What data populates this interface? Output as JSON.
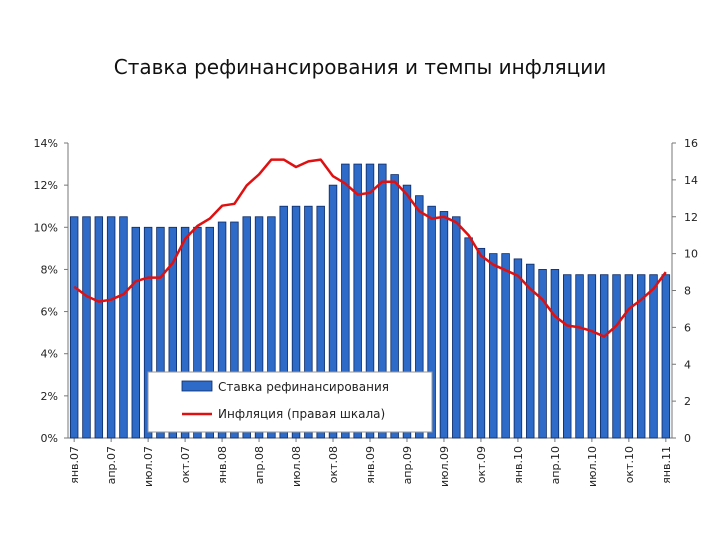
{
  "title": "Ставка рефинансирования и темпы инфляции",
  "colors": {
    "bar": "#2e6bc8",
    "bar_edge": "#0b2a66",
    "line": "#e01010"
  },
  "chart_data": {
    "type": "bar",
    "left_axis": {
      "ticks": [
        "0%",
        "2%",
        "4%",
        "6%",
        "8%",
        "10%",
        "12%",
        "14%"
      ],
      "ylim": [
        0,
        14
      ]
    },
    "right_axis": {
      "ticks": [
        "0",
        "2",
        "4",
        "6",
        "8",
        "10",
        "12",
        "14",
        "16"
      ],
      "ylim": [
        0,
        16
      ]
    },
    "x_labels": [
      "янв.07",
      "апр.07",
      "июл.07",
      "окт.07",
      "янв.08",
      "апр.08",
      "июл.08",
      "окт.08",
      "янв.09",
      "апр.09",
      "июл.09",
      "окт.09",
      "янв.10",
      "апр.10",
      "июл.10",
      "окт.10",
      "янв.11"
    ],
    "series": [
      {
        "name": "Ставка рефинансирования",
        "kind": "bar",
        "axis": "left",
        "values": [
          10.5,
          10.5,
          10.5,
          10.5,
          10.5,
          10.0,
          10.0,
          10.0,
          10.0,
          10.0,
          10.0,
          10.0,
          10.25,
          10.25,
          10.5,
          10.5,
          10.5,
          11.0,
          11.0,
          11.0,
          11.0,
          12.0,
          13.0,
          13.0,
          13.0,
          13.0,
          12.5,
          12.0,
          11.5,
          11.0,
          10.75,
          10.5,
          9.5,
          9.0,
          8.75,
          8.75,
          8.5,
          8.25,
          8.0,
          8.0,
          7.75,
          7.75,
          7.75,
          7.75,
          7.75,
          7.75,
          7.75,
          7.75,
          7.75
        ]
      },
      {
        "name": "Инфляция (правая шкала)",
        "kind": "line",
        "axis": "right",
        "values": [
          8.2,
          7.7,
          7.4,
          7.5,
          7.8,
          8.5,
          8.7,
          8.7,
          9.5,
          10.8,
          11.5,
          11.9,
          12.6,
          12.7,
          13.7,
          14.3,
          15.1,
          15.1,
          14.7,
          15.0,
          15.1,
          14.2,
          13.8,
          13.2,
          13.3,
          13.9,
          13.9,
          13.2,
          12.3,
          11.9,
          12.0,
          11.7,
          11.0,
          9.9,
          9.4,
          9.1,
          8.8,
          8.1,
          7.5,
          6.6,
          6.1,
          6.0,
          5.8,
          5.5,
          6.1,
          7.0,
          7.5,
          8.1,
          9.0
        ]
      }
    ]
  }
}
